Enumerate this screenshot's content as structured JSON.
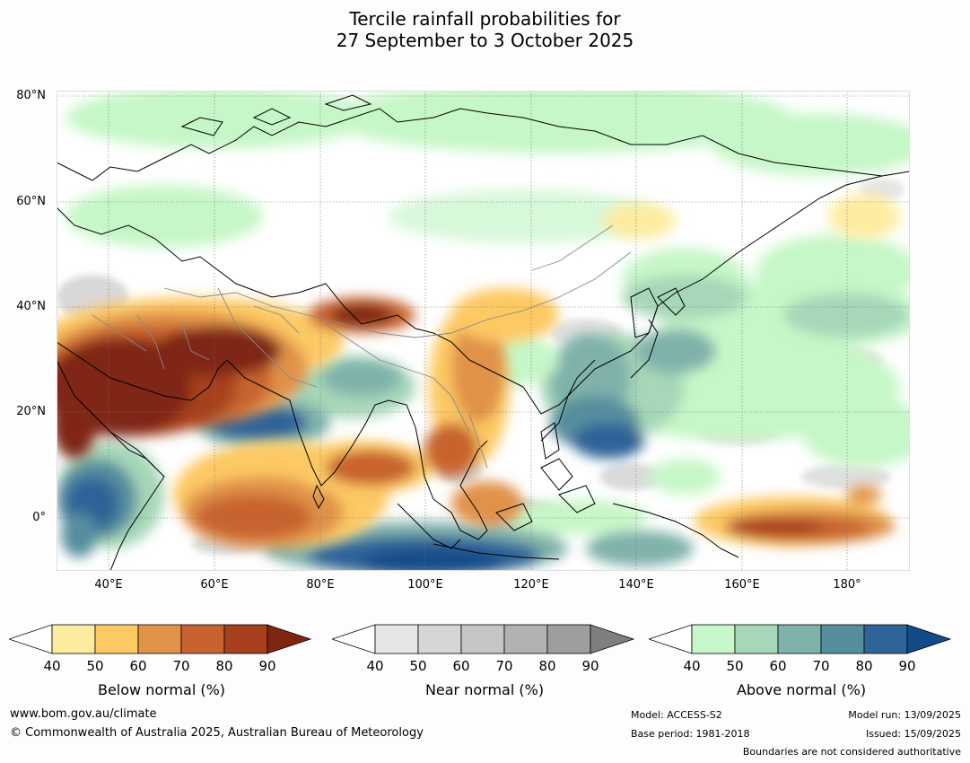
{
  "title": {
    "line1": "Tercile rainfall probabilities for",
    "line2": "27 September to 3 October 2025"
  },
  "map": {
    "lat_labels": [
      "80°N",
      "60°N",
      "40°N",
      "20°N",
      "0°"
    ],
    "lon_labels": [
      "40°E",
      "60°E",
      "80°E",
      "100°E",
      "120°E",
      "140°E",
      "160°E",
      "180°"
    ]
  },
  "colorbars": [
    {
      "id": "below",
      "title": "Below normal (%)",
      "ticks": [
        "40",
        "50",
        "60",
        "70",
        "80",
        "90"
      ],
      "colors": [
        "#ffffff",
        "#fdeca0",
        "#fdc963",
        "#e09248",
        "#c8632f",
        "#a7401f",
        "#7f2612"
      ]
    },
    {
      "id": "near",
      "title": "Near normal (%)",
      "ticks": [
        "40",
        "50",
        "60",
        "70",
        "80",
        "90"
      ],
      "colors": [
        "#ffffff",
        "#e6e6e6",
        "#d6d6d6",
        "#c6c6c6",
        "#b2b2b2",
        "#9e9e9e",
        "#7f7f7f"
      ]
    },
    {
      "id": "above",
      "title": "Above normal (%)",
      "ticks": [
        "40",
        "50",
        "60",
        "70",
        "80",
        "90"
      ],
      "colors": [
        "#ffffff",
        "#c6f7c8",
        "#a6d7b8",
        "#7fb2aa",
        "#568e9e",
        "#2f6499",
        "#124b8a"
      ]
    }
  ],
  "footer": {
    "url": "www.bom.gov.au/climate",
    "copyright": "© Commonwealth of Australia 2025, Australian Bureau of Meteorology",
    "model": "Model: ACCESS-S2",
    "base_period": "Base period: 1981-2018",
    "model_run": "Model run: 13/09/2025",
    "issued": "Issued: 15/09/2025",
    "disclaimer": "Boundaries are not considered authoritative"
  }
}
